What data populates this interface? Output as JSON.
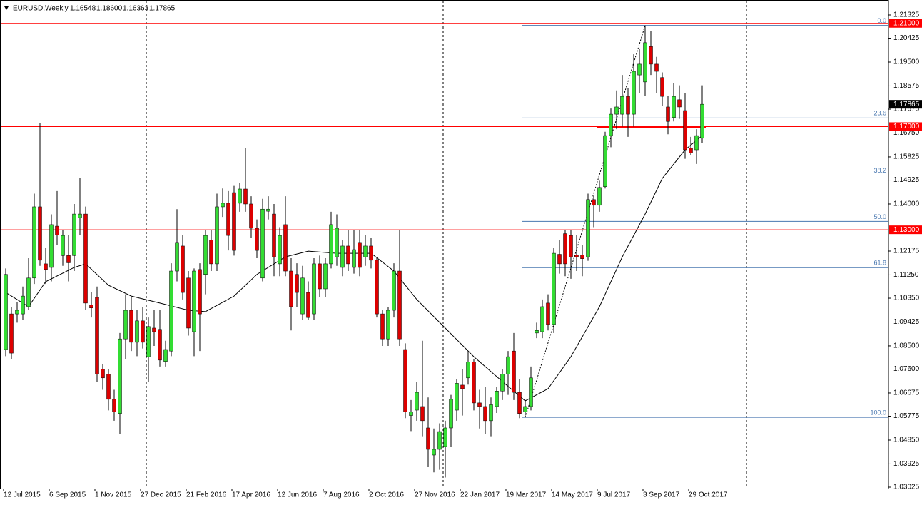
{
  "chart_data": {
    "type": "candlestick",
    "header": {
      "symbol": "EURUSD,Weekly",
      "ohlc": [
        "1.16548",
        "1.18600",
        "1.16363",
        "1.17865"
      ]
    },
    "categories": [
      "12 Jul 2015",
      null,
      null,
      null,
      null,
      null,
      null,
      null,
      "6 Sep 2015",
      null,
      null,
      null,
      null,
      null,
      null,
      null,
      "1 Nov 2015",
      null,
      null,
      null,
      null,
      null,
      null,
      null,
      "27 Dec 2015",
      null,
      null,
      null,
      null,
      null,
      null,
      null,
      "21 Feb 2016",
      null,
      null,
      null,
      null,
      null,
      null,
      null,
      "17 Apr 2016",
      null,
      null,
      null,
      null,
      null,
      null,
      null,
      "12 Jun 2016",
      null,
      null,
      null,
      null,
      null,
      null,
      null,
      "7 Aug 2016",
      null,
      null,
      null,
      null,
      null,
      null,
      null,
      "2 Oct 2016",
      null,
      null,
      null,
      null,
      null,
      null,
      null,
      "27 Nov 2016",
      null,
      null,
      null,
      null,
      null,
      null,
      null,
      "22 Jan 2017",
      null,
      null,
      null,
      null,
      null,
      null,
      null,
      "19 Mar 2017",
      null,
      null,
      null,
      null,
      null,
      null,
      null,
      "14 May 2017",
      null,
      null,
      null,
      null,
      null,
      null,
      null,
      "9 Jul 2017",
      null,
      null,
      null,
      null,
      null,
      null,
      null,
      "3 Sep 2017",
      null,
      null,
      null,
      null,
      null,
      null,
      null,
      "29 Oct 2017",
      null,
      null
    ],
    "open": [
      1.0836,
      1.0974,
      1.0974,
      1.0974,
      1.1002,
      1.1113,
      1.1389,
      1.1168,
      1.1154,
      1.1314,
      1.12,
      1.12,
      1.12,
      1.1347,
      1.1361,
      1.1008,
      1.1038,
      1.076,
      1.074,
      1.0643,
      1.0588,
      1.0877,
      1.0988,
      1.0864,
      1.0947,
      1.0808,
      1.0919,
      1.0914,
      1.079,
      1.083,
      1.114,
      1.1237,
      1.1113,
      1.0905,
      1.1146,
      1.1127,
      1.126,
      1.1168,
      1.1389,
      1.1403,
      1.1444,
      1.1403,
      1.1458,
      1.14,
      1.1306,
      1.1113,
      1.1372,
      1.1361,
      1.1168,
      1.132,
      1.114,
      1.1127,
      1.0974,
      1.1057,
      1.0974,
      1.1168,
      1.1071,
      1.1168,
      1.1195,
      1.1154,
      1.1237,
      1.1154,
      1.1251,
      1.1195,
      1.1237,
      1.1182,
      1.0974,
      1.0877,
      1.0988,
      1.114,
      1.0836,
      1.058,
      1.0601,
      1.0615,
      1.0532,
      1.0427,
      1.0449,
      1.046,
      1.0532,
      1.0601,
      1.0698,
      1.0726,
      1.0788,
      1.0629,
      1.0615,
      1.056,
      1.0615,
      1.0675,
      1.074,
      1.083,
      1.067,
      1.0594,
      1.0615,
      1.09,
      1.0905,
      1.1016,
      1.0933,
      1.1205,
      1.1285,
      1.1278,
      1.1202,
      1.1202,
      1.1195,
      1.1417,
      1.1395,
      1.1467,
      1.1665,
      1.1748,
      1.1748,
      1.1817,
      1.1748,
      1.19,
      1.1873,
      1.201,
      1.1942,
      1.189,
      1.1776,
      1.1735,
      1.1804,
      1.1762,
      1.1616,
      1.161,
      1.16548
    ],
    "high": [
      1.115,
      1.1,
      1.102,
      1.108,
      1.119,
      1.144,
      1.1714,
      1.123,
      1.136,
      1.145,
      1.13,
      1.128,
      1.14,
      1.15,
      1.139,
      1.106,
      1.108,
      1.078,
      1.076,
      1.068,
      1.09,
      1.105,
      1.104,
      1.099,
      1.1,
      1.096,
      1.099,
      1.099,
      1.087,
      1.117,
      1.138,
      1.128,
      1.114,
      1.115,
      1.117,
      1.13,
      1.13,
      1.144,
      1.146,
      1.145,
      1.147,
      1.148,
      1.1616,
      1.143,
      1.134,
      1.142,
      1.143,
      1.14,
      1.131,
      1.143,
      1.119,
      1.117,
      1.116,
      1.11,
      1.119,
      1.12,
      1.119,
      1.137,
      1.136,
      1.126,
      1.13,
      1.13,
      1.13,
      1.128,
      1.127,
      1.119,
      1.099,
      1.1,
      1.117,
      1.13,
      1.086,
      1.064,
      1.071,
      1.087,
      1.065,
      1.053,
      1.055,
      1.056,
      1.066,
      1.072,
      1.076,
      1.083,
      1.08,
      1.068,
      1.069,
      1.065,
      1.069,
      1.076,
      1.083,
      1.09,
      1.072,
      1.064,
      1.077,
      1.094,
      1.103,
      1.105,
      1.123,
      1.126,
      1.13,
      1.13,
      1.128,
      1.124,
      1.144,
      1.143,
      1.149,
      1.168,
      1.177,
      1.184,
      1.19,
      1.185,
      1.198,
      1.2,
      1.2092,
      1.207,
      1.197,
      1.191,
      1.182,
      1.187,
      1.186,
      1.183,
      1.166,
      1.169,
      1.186
    ],
    "low": [
      1.081,
      1.08,
      1.094,
      1.095,
      1.099,
      1.109,
      1.116,
      1.109,
      1.11,
      1.124,
      1.116,
      1.11,
      1.114,
      1.128,
      1.099,
      1.096,
      1.071,
      1.068,
      1.06,
      1.056,
      1.051,
      1.08,
      1.083,
      1.081,
      1.084,
      1.071,
      1.085,
      1.077,
      1.077,
      1.081,
      1.11,
      1.103,
      1.089,
      1.081,
      1.083,
      1.105,
      1.114,
      1.114,
      1.135,
      1.122,
      1.12,
      1.137,
      1.137,
      1.127,
      1.119,
      1.11,
      1.134,
      1.112,
      1.112,
      1.112,
      1.091,
      1.1,
      1.095,
      1.095,
      1.095,
      1.104,
      1.104,
      1.115,
      1.116,
      1.112,
      1.114,
      1.113,
      1.112,
      1.116,
      1.115,
      1.096,
      1.085,
      1.085,
      1.096,
      1.085,
      1.057,
      1.052,
      1.056,
      1.05,
      1.038,
      1.036,
      1.037,
      1.034,
      1.046,
      1.056,
      1.058,
      1.07,
      1.06,
      1.053,
      1.051,
      1.05,
      1.059,
      1.064,
      1.066,
      1.064,
      1.057,
      1.058,
      1.06,
      1.088,
      1.088,
      1.091,
      1.09,
      1.113,
      1.112,
      1.111,
      1.114,
      1.112,
      1.118,
      1.131,
      1.137,
      1.146,
      1.162,
      1.169,
      1.17,
      1.166,
      1.17,
      1.183,
      1.182,
      1.19,
      1.183,
      1.178,
      1.167,
      1.172,
      1.173,
      1.1575,
      1.159,
      1.1555,
      1.16363
    ],
    "close": [
      1.1127,
      1.0822,
      1.0988,
      1.1043,
      1.1113,
      1.1389,
      1.1182,
      1.1146,
      1.132,
      1.128,
      1.1278,
      1.1172,
      1.1361,
      1.1361,
      1.1016,
      1.0997,
      1.074,
      1.0726,
      1.0643,
      1.0594,
      1.0877,
      1.0988,
      1.0864,
      1.0947,
      1.0864,
      1.0925,
      1.0905,
      1.0795,
      1.0836,
      1.114,
      1.1251,
      1.1057,
      1.0919,
      1.114,
      1.0974,
      1.1278,
      1.1168,
      1.1389,
      1.1403,
      1.1278,
      1.122,
      1.1458,
      1.14,
      1.1306,
      1.122,
      1.138,
      1.138,
      1.1195,
      1.1278,
      1.114,
      1.1002,
      1.1057,
      1.1113,
      1.096,
      1.1168,
      1.1071,
      1.1168,
      1.132,
      1.1306,
      1.1237,
      1.1168,
      1.1223,
      1.1154,
      1.1237,
      1.1182,
      1.0974,
      1.0877,
      1.0988,
      1.114,
      1.0877,
      1.0594,
      1.0594,
      1.067,
      1.056,
      1.0449,
      1.0449,
      1.0518,
      1.0532,
      1.0643,
      1.0705,
      1.0684,
      1.0788,
      1.0629,
      1.0615,
      1.056,
      1.0622,
      1.0675,
      1.074,
      1.0808,
      1.067,
      1.0588,
      1.0615,
      1.0726,
      1.091,
      1.1002,
      1.0933,
      1.1209,
      1.1168,
      1.1168,
      1.1195,
      1.1195,
      1.1188,
      1.1417,
      1.1395,
      1.1464,
      1.1665,
      1.1748,
      1.1776,
      1.1817,
      1.1748,
      1.1914,
      1.1942,
      1.2025,
      1.1942,
      1.1914,
      1.1817,
      1.172,
      1.1817,
      1.1776,
      1.161,
      1.1597,
      1.1665,
      1.17865
    ],
    "up_color": "#33dd33",
    "down_color": "#dd0000",
    "moving_average": {
      "color": "#000000",
      "x": [
        0,
        4,
        7,
        12,
        14,
        18,
        22,
        27,
        32,
        35,
        40,
        44,
        49,
        53,
        58,
        64,
        68,
        72,
        77,
        82,
        87,
        91,
        95,
        99,
        104,
        108,
        112,
        115,
        119,
        122
      ],
      "values": [
        1.1057,
        1.1002,
        1.1099,
        1.1154,
        1.1168,
        1.1085,
        1.1043,
        1.1016,
        1.0988,
        1.0983,
        1.1043,
        1.1127,
        1.1195,
        1.1217,
        1.1209,
        1.1209,
        1.114,
        1.103,
        1.0919,
        1.0808,
        1.0712,
        1.0637,
        1.0684,
        1.0808,
        1.1002,
        1.1195,
        1.1361,
        1.1499,
        1.161,
        1.1665
      ]
    },
    "fibonacci": {
      "color": "#4a78b0",
      "from": {
        "x": 91,
        "price": 1.0573
      },
      "to": {
        "x": 112,
        "price": 1.2092
      },
      "levels": [
        {
          "value": 0,
          "label": "0.0"
        },
        23.6,
        38.2,
        {
          "value": 50,
          "label": "50.0"
        },
        61.8,
        {
          "value": 100,
          "label": "100.0"
        }
      ]
    },
    "horizontal_lines": {
      "color": "#ff0000",
      "levels": [
        {
          "value": 1.21,
          "label": "1.21000"
        },
        {
          "value": 1.17,
          "label": "1.17000"
        },
        {
          "value": 1.13,
          "label": "1.13000"
        }
      ]
    },
    "last_price": 1.17865,
    "ylim": [
      1.0297,
      1.2185
    ],
    "yticks": [
      {
        "value": 1.21325,
        "label": "1.21325"
      },
      {
        "value": 1.20425,
        "label": "1.20425"
      },
      {
        "value": 1.195,
        "label": "1.19500"
      },
      {
        "value": 1.18575,
        "label": "1.18575"
      },
      {
        "value": 1.17675,
        "label": "1.17675"
      },
      {
        "value": 1.1675,
        "label": "1.16750"
      },
      {
        "value": 1.15825,
        "label": "1.15825"
      },
      {
        "value": 1.14925,
        "label": "1.14925"
      },
      {
        "value": 1.14,
        "label": "1.14000"
      },
      {
        "value": 1.12175,
        "label": "1.12175"
      },
      {
        "value": 1.1125,
        "label": "1.11250"
      },
      {
        "value": 1.1035,
        "label": "1.10350"
      },
      {
        "value": 1.09425,
        "label": "1.09425"
      },
      {
        "value": 1.085,
        "label": "1.08500"
      },
      {
        "value": 1.076,
        "label": "1.07600"
      },
      {
        "value": 1.06675,
        "label": "1.06675"
      },
      {
        "value": 1.05775,
        "label": "1.05775"
      },
      {
        "value": 1.0485,
        "label": "1.04850"
      },
      {
        "value": 1.03925,
        "label": "1.03925"
      },
      {
        "value": 1.03025,
        "label": "1.03025"
      }
    ]
  }
}
